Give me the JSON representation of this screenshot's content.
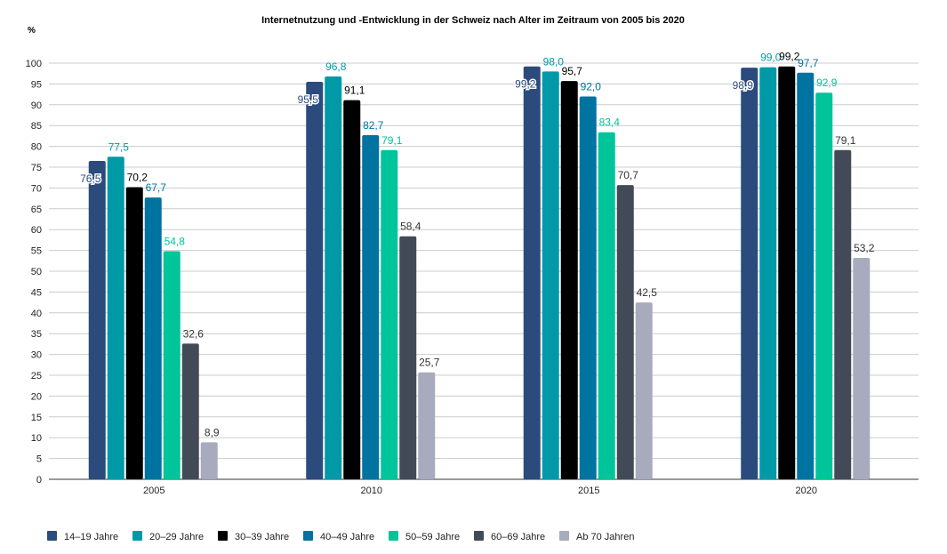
{
  "chart_data": {
    "type": "bar",
    "title": "Internetnutzung und -Entwicklung in der Schweiz nach Alter im Zeitraum von 2005 bis 2020",
    "ylabel": "%",
    "xlabel": "",
    "ylim": [
      0,
      100
    ],
    "yticks": [
      0,
      5,
      10,
      15,
      20,
      25,
      30,
      35,
      40,
      45,
      50,
      55,
      60,
      65,
      70,
      75,
      80,
      85,
      90,
      95,
      100
    ],
    "grid": true,
    "legend_position": "bottom-left",
    "categories": [
      "2005",
      "2010",
      "2015",
      "2020"
    ],
    "series": [
      {
        "name": "14–19 Jahre",
        "color": "#2a4b7c",
        "values": [
          76.5,
          95.5,
          99.2,
          98.9
        ],
        "labels": [
          "76,5",
          "95,5",
          "99,2",
          "98,9"
        ]
      },
      {
        "name": "20–29 Jahre",
        "color": "#0099a8",
        "values": [
          77.5,
          96.8,
          98.0,
          99.0
        ],
        "labels": [
          "77,5",
          "96,8",
          "98,0",
          "99,0"
        ]
      },
      {
        "name": "30–39 Jahre",
        "color": "#000000",
        "values": [
          70.2,
          91.1,
          95.7,
          99.2
        ],
        "labels": [
          "70,2",
          "91,1",
          "95,7",
          "99,2"
        ]
      },
      {
        "name": "40–49 Jahre",
        "color": "#0073a0",
        "values": [
          67.7,
          82.7,
          92.0,
          97.7
        ],
        "labels": [
          "67,7",
          "82,7",
          "92,0",
          "97,7"
        ]
      },
      {
        "name": "50–59 Jahre",
        "color": "#00c49a",
        "values": [
          54.8,
          79.1,
          83.4,
          92.9
        ],
        "labels": [
          "54,8",
          "79,1",
          "83,4",
          "92,9"
        ]
      },
      {
        "name": "60–69 Jahre",
        "color": "#434a57",
        "values": [
          32.6,
          58.4,
          70.7,
          79.1
        ],
        "labels": [
          "32,6",
          "58,4",
          "70,7",
          "79,1"
        ]
      },
      {
        "name": "Ab 70 Jahren",
        "color": "#a7abbd",
        "values": [
          8.9,
          25.7,
          42.5,
          53.2
        ],
        "labels": [
          "8,9",
          "25,7",
          "42,5",
          "53,2"
        ]
      }
    ]
  }
}
